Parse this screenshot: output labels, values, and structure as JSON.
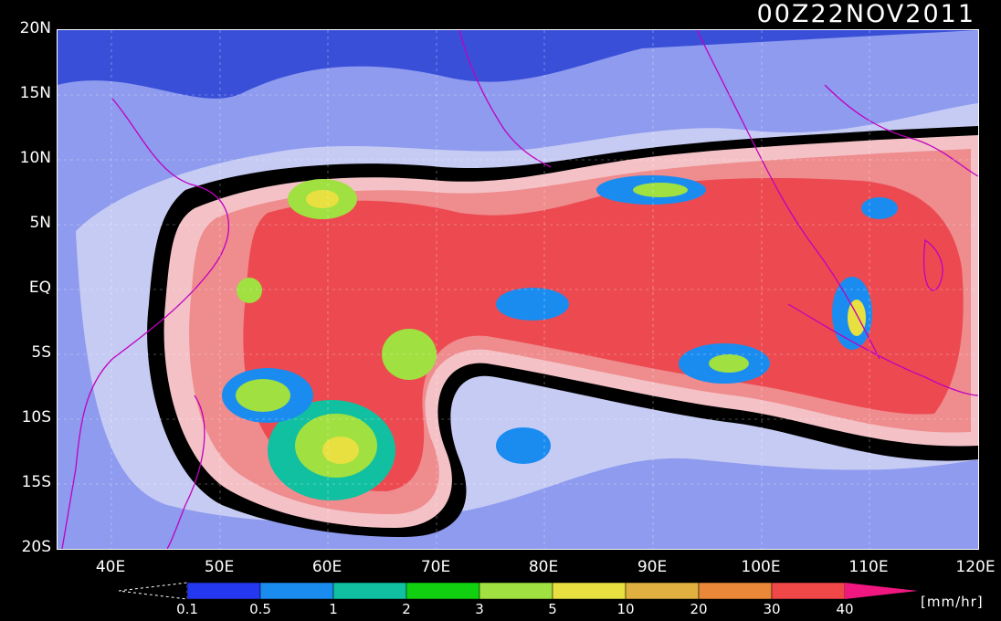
{
  "timestamp": "00Z22NOV2011",
  "map": {
    "lat_labels": [
      "20N",
      "15N",
      "10N",
      "5N",
      "EQ",
      "5S",
      "10S",
      "15S",
      "20S"
    ],
    "lon_labels": [
      "40E",
      "50E",
      "60E",
      "70E",
      "80E",
      "90E",
      "100E",
      "110E",
      "120E"
    ],
    "lat_range": [
      -20,
      20
    ],
    "lon_range": [
      35,
      120
    ],
    "variable": "rain rate",
    "colors": {
      "ocean_dry": "#3a4fd8",
      "dry_light": "#9aa6f0",
      "dry_lighter": "#c8ccf5",
      "moist_pink": "#f4c2c6",
      "moist_salmon": "#ee8c8e",
      "wet_red": "#ec4a50",
      "coast": "#c000c0"
    }
  },
  "colorbar": {
    "ticks": [
      "0.1",
      "0.5",
      "1",
      "2",
      "3",
      "5",
      "10",
      "20",
      "30",
      "40"
    ],
    "colors": [
      "#2438f0",
      "#1a8cf0",
      "#10c0a0",
      "#10d010",
      "#a0e040",
      "#e8e040",
      "#e0b040",
      "#e88838",
      "#f04848",
      "#f01880"
    ],
    "units": "[mm/hr]"
  }
}
